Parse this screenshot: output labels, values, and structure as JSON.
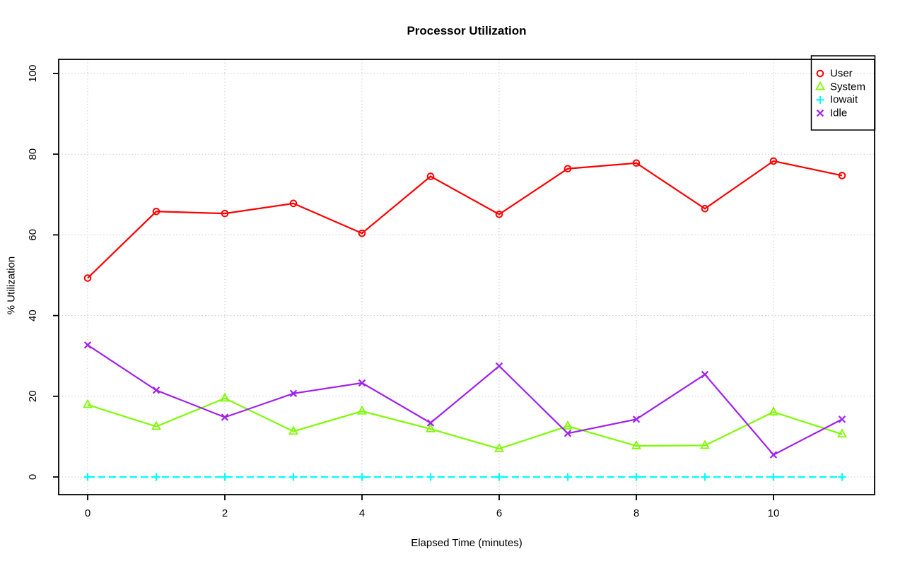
{
  "chart_data": {
    "type": "line",
    "title": "Processor Utilization",
    "xlabel": "Elapsed Time (minutes)",
    "ylabel": "% Utilization",
    "x": [
      0,
      1,
      2,
      3,
      4,
      5,
      6,
      7,
      8,
      9,
      10,
      11
    ],
    "xlim": [
      0,
      11
    ],
    "ylim": [
      0,
      100
    ],
    "xticks": [
      0,
      2,
      4,
      6,
      8,
      10
    ],
    "yticks": [
      0,
      20,
      40,
      60,
      80,
      100
    ],
    "grid": "dotted",
    "grid_color": "#c9c9c9",
    "axis_color": "#000000",
    "legend_position": "top-right",
    "series": [
      {
        "name": "User",
        "marker": "circle",
        "line_style": "solid",
        "color": "#ff0000",
        "values": [
          49.3,
          65.8,
          65.3,
          67.8,
          60.4,
          74.5,
          65.1,
          76.4,
          77.8,
          66.5,
          78.3,
          74.7
        ]
      },
      {
        "name": "System",
        "marker": "triangle",
        "line_style": "solid",
        "color": "#7cfc00",
        "values": [
          17.9,
          12.5,
          19.5,
          11.3,
          16.3,
          11.9,
          7.0,
          12.6,
          7.7,
          7.8,
          16.1,
          10.6
        ]
      },
      {
        "name": "Iowait",
        "marker": "plus",
        "line_style": "dashed",
        "color": "#00ffff",
        "values": [
          0,
          0,
          0,
          0,
          0,
          0,
          0,
          0,
          0,
          0,
          0,
          0
        ]
      },
      {
        "name": "Idle",
        "marker": "x",
        "line_style": "solid",
        "color": "#a020f0",
        "values": [
          32.7,
          21.5,
          14.8,
          20.7,
          23.3,
          13.4,
          27.5,
          10.8,
          14.3,
          25.4,
          5.5,
          14.3
        ]
      }
    ]
  }
}
